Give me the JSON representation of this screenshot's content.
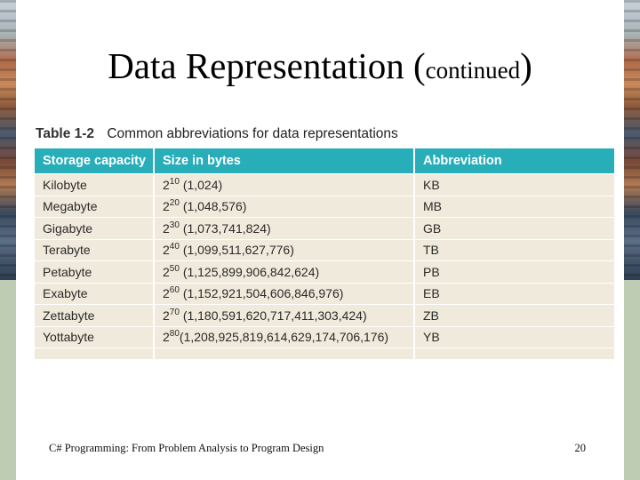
{
  "title": {
    "main": "Data Representation (",
    "small": "continued",
    "close": ")"
  },
  "table": {
    "label": "Table 1-2",
    "caption": "Common abbreviations for data representations",
    "headers": [
      "Storage capacity",
      "Size in bytes",
      "Abbreviation"
    ],
    "rows": [
      {
        "capacity": "Kilobyte",
        "base": "2",
        "exp": "10",
        "value": "(1,024)",
        "abbr": "KB"
      },
      {
        "capacity": "Megabyte",
        "base": "2",
        "exp": "20",
        "value": "(1,048,576)",
        "abbr": "MB"
      },
      {
        "capacity": "Gigabyte",
        "base": "2",
        "exp": "30",
        "value": "(1,073,741,824)",
        "abbr": "GB"
      },
      {
        "capacity": "Terabyte",
        "base": "2",
        "exp": "40",
        "value": "(1,099,511,627,776)",
        "abbr": "TB"
      },
      {
        "capacity": "Petabyte",
        "base": "2",
        "exp": "50",
        "value": "(1,125,899,906,842,624)",
        "abbr": "PB"
      },
      {
        "capacity": "Exabyte",
        "base": "2",
        "exp": "60",
        "value": "(1,152,921,504,606,846,976)",
        "abbr": "EB"
      },
      {
        "capacity": "Zettabyte",
        "base": "2",
        "exp": "70",
        "value": "(1,180,591,620,717,411,303,424)",
        "abbr": "ZB"
      },
      {
        "capacity": "Yottabyte",
        "base": "2",
        "exp": "80",
        "value": "(1,208,925,819,614,629,174,706,176)",
        "abbr": "YB"
      }
    ]
  },
  "footer": {
    "text": "C# Programming: From Problem Analysis to Program Design",
    "page": "20"
  },
  "colors": {
    "header_bg": "#27aeb9",
    "row_bg": "#efeadb"
  }
}
